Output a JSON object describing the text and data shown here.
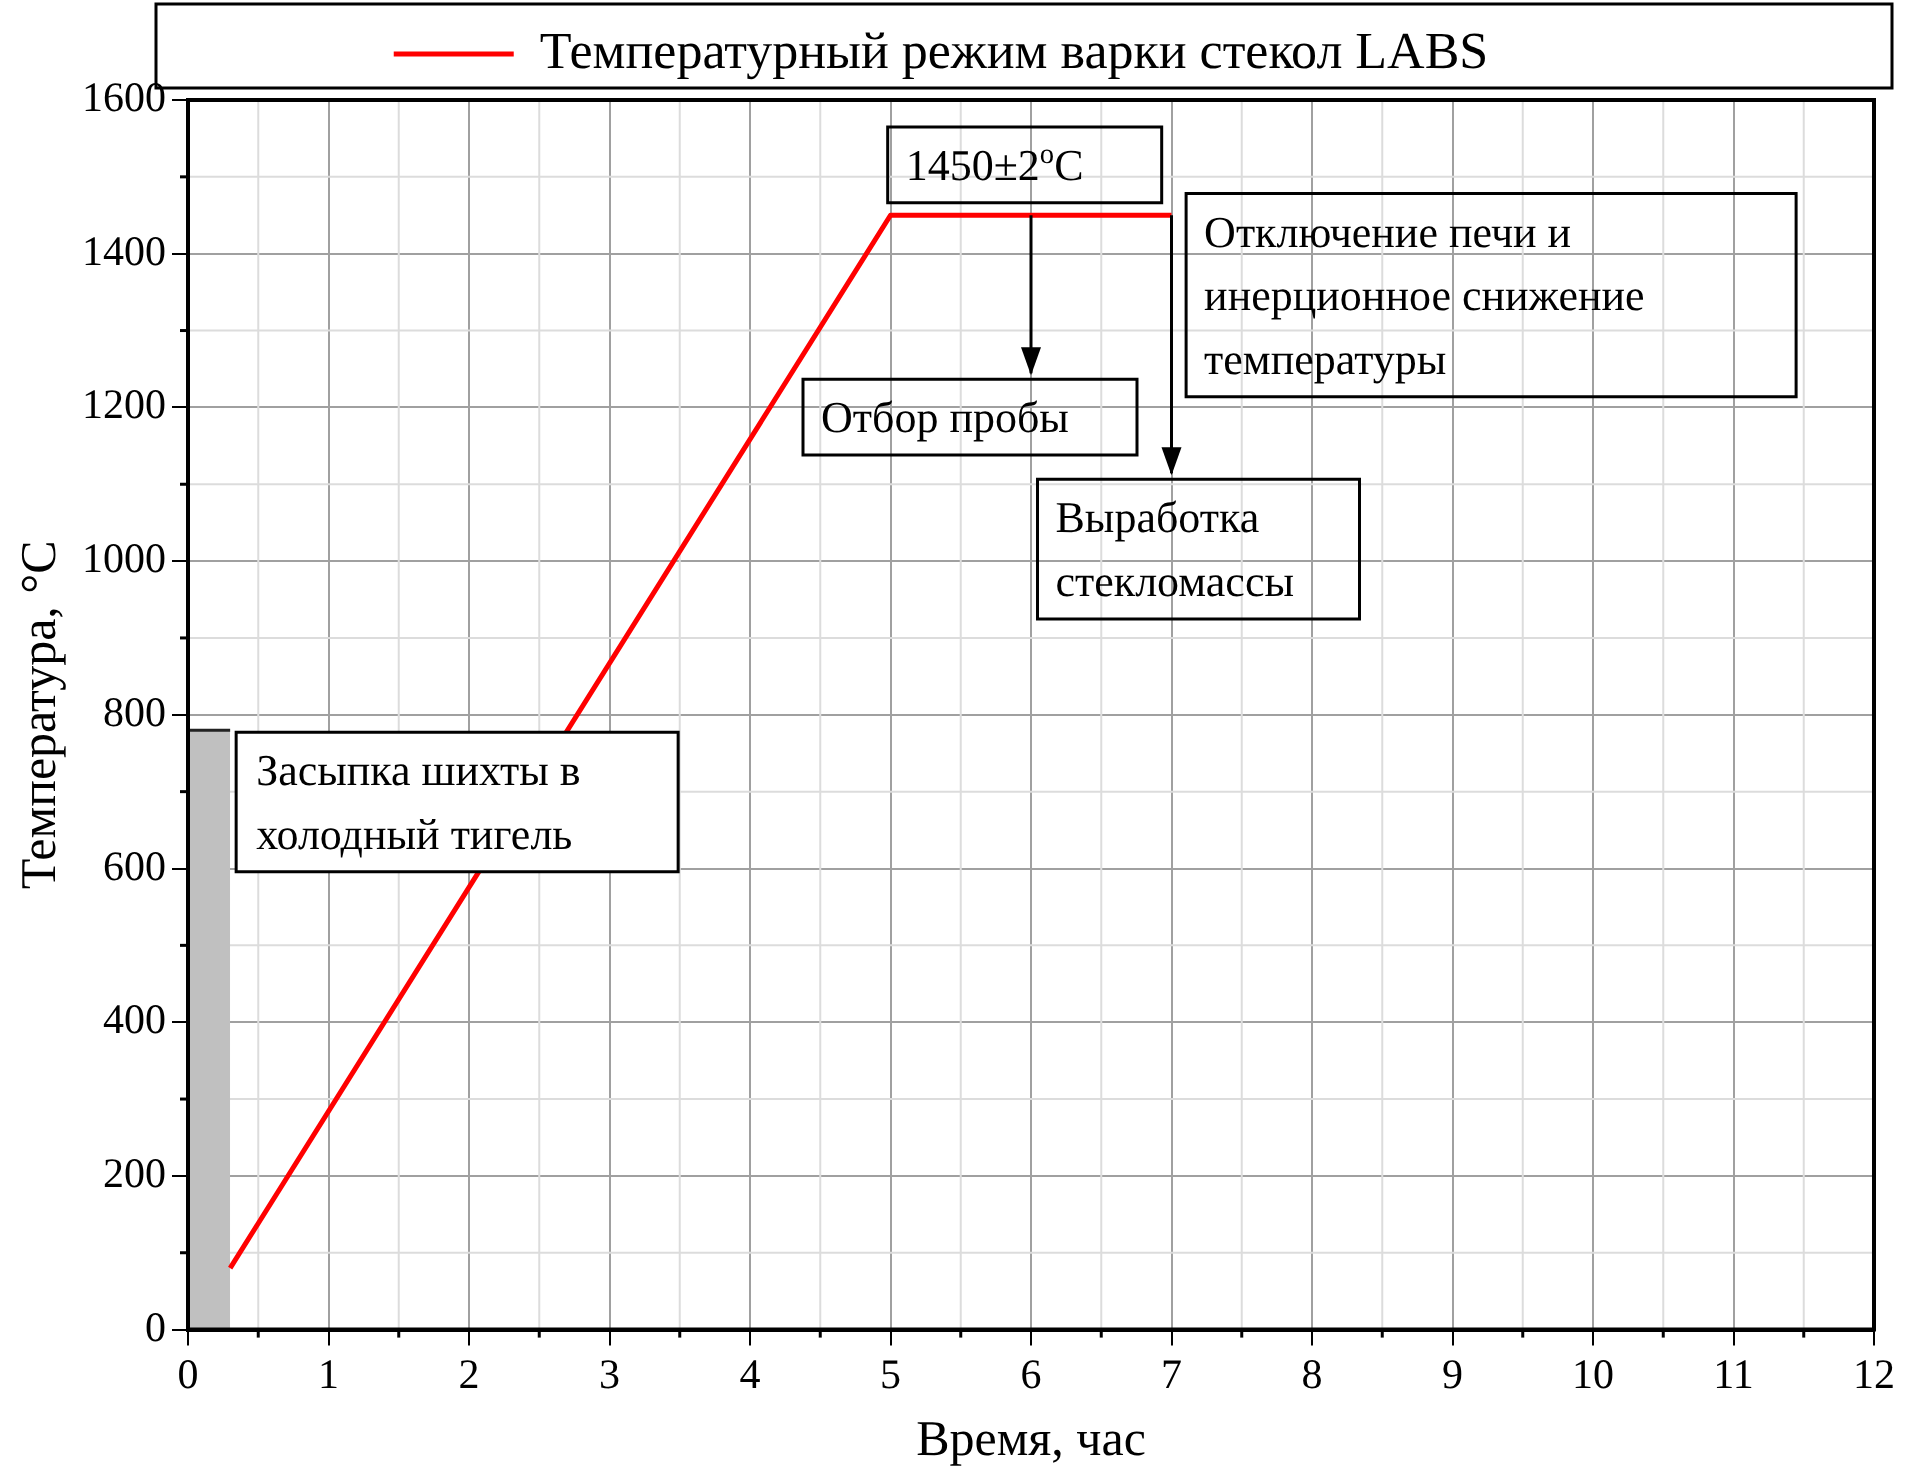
{
  "chart_data": {
    "type": "line",
    "xlabel": "Время, час",
    "ylabel": "Температура, °C",
    "xlim": [
      0,
      12
    ],
    "xticks": [
      0,
      1,
      2,
      3,
      4,
      5,
      6,
      7,
      8,
      9,
      10,
      11,
      12
    ],
    "ylim": [
      0,
      1600
    ],
    "yticks": [
      0,
      200,
      400,
      600,
      800,
      1000,
      1200,
      1400,
      1600
    ],
    "grid": true,
    "legend": "top",
    "marker": "none",
    "line_style": "solid",
    "series": [
      {
        "name": "Температурный режим варки стекол LABS",
        "color": "#ff0000",
        "type": "line",
        "x": [
          0.3,
          5,
          7
        ],
        "values": [
          80,
          1450,
          1450
        ]
      },
      {
        "name": "Засыпка шихты в холодный тигель",
        "color": "#c0c0c0",
        "type": "area",
        "x": [
          0,
          0.3
        ],
        "values": [
          780,
          780
        ]
      }
    ],
    "annotations": [
      "1450±2$^{o}$C",
      {
        "text": "Отбор пробы",
        "x": 6,
        "y": 1450
      },
      "Отключение печи и инерционное снижение температуры",
      {
        "text": "Выработка стекломассы",
        "x": 7,
        "y": 1450
      }
    ]
  }
}
